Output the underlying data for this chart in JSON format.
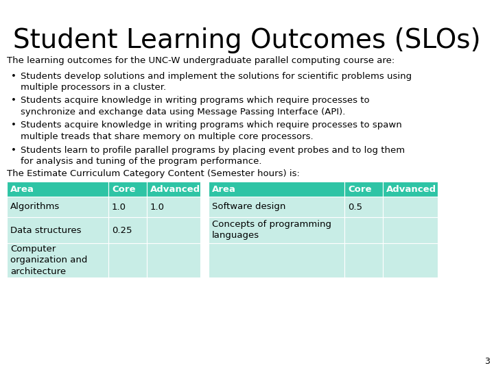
{
  "title": "Student Learning Outcomes (SLOs)",
  "subtitle": "The learning outcomes for the UNC-W undergraduate parallel computing course are:",
  "bullets": [
    "Students develop solutions and implement the solutions for scientific problems using\nmultiple processors in a cluster.",
    "Students acquire knowledge in writing programs which require processes to\nsynchronize and exchange data using Message Passing Interface (API).",
    "Students acquire knowledge in writing programs which require processes to spawn\nmultiple treads that share memory on multiple core processors.",
    "Students learn to profile parallel programs by placing event probes and to log them\nfor analysis and tuning of the program performance."
  ],
  "table_intro": "The Estimate Curriculum Category Content (Semester hours) is:",
  "table_header_color": "#2ec4a5",
  "table_row_color": "#c8ede6",
  "header_text_color": "#ffffff",
  "background_color": "#ffffff",
  "title_fontsize": 28,
  "subtitle_fontsize": 9.5,
  "bullet_fontsize": 9.5,
  "table_header_fontsize": 9.5,
  "table_cell_fontsize": 9.5,
  "table_intro_fontsize": 9.5,
  "page_number": "3",
  "left_headers": [
    "Area",
    "Core",
    "Advanced"
  ],
  "right_headers": [
    "Area",
    "Core",
    "Advanced"
  ],
  "left_rows": [
    [
      "Algorithms",
      "1.0",
      "1.0"
    ],
    [
      "Data structures",
      "0.25",
      ""
    ],
    [
      "Computer\norganization and\narchitecture",
      "",
      ""
    ]
  ],
  "right_rows": [
    [
      "Software design",
      "0.5",
      ""
    ],
    [
      "Concepts of programming\nlanguages",
      "",
      ""
    ],
    [
      "",
      "",
      ""
    ]
  ]
}
